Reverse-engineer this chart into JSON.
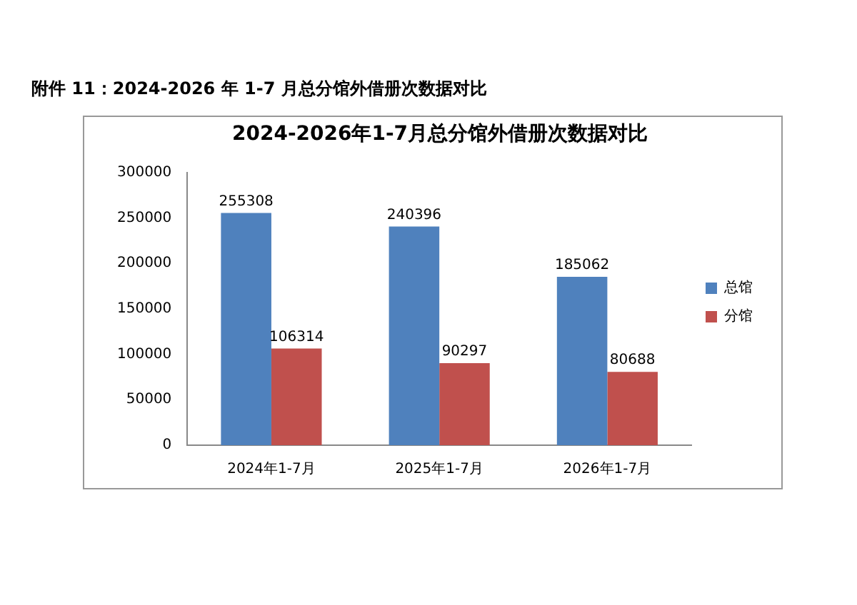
{
  "chart_data": {
    "type": "bar",
    "title": "2024-2026年1-7月总分馆外借册次数据对比",
    "annotations": [
      "附件 11：2024-2026 年 1-7 月总分馆外借册次数据对比"
    ],
    "categories": [
      "2024年1-7月",
      "2025年1-7月",
      "2026年1-7月"
    ],
    "series": [
      {
        "name": "总馆",
        "color": "#4f81bd",
        "values": [
          255308,
          240396,
          185062
        ]
      },
      {
        "name": "分馆",
        "color": "#c0504d",
        "values": [
          106314,
          90297,
          80688
        ]
      }
    ],
    "ylim": [
      0,
      300000
    ],
    "yticks": [
      0,
      50000,
      100000,
      150000,
      200000,
      250000,
      300000
    ],
    "data_labels": true,
    "legend": "right"
  }
}
